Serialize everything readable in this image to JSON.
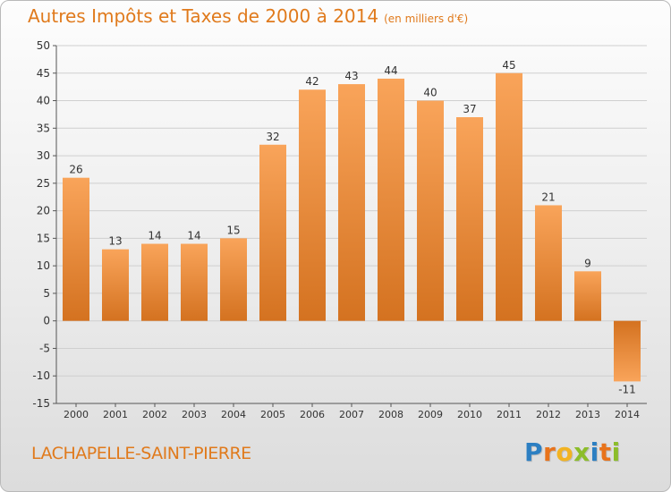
{
  "title": "Autres Impôts et Taxes de 2000 à 2014",
  "unit": "(en milliers d'€)",
  "commune": "LACHAPELLE-SAINT-PIERRE",
  "logo": {
    "letters": [
      "P",
      "r",
      "o",
      "x",
      "i",
      "t",
      "i"
    ],
    "colors": [
      "#2c7fc2",
      "#e8731b",
      "#f2b322",
      "#8cbd2a",
      "#2c7fc2",
      "#e8731b",
      "#8cbd2a"
    ]
  },
  "colors": {
    "bar_top": "#f9a45a",
    "bar_bottom": "#d47220",
    "title": "#e07a1c",
    "grid": "#cfcfcf",
    "axis": "#555555"
  },
  "chart_data": {
    "type": "bar",
    "title": "Autres Impôts et Taxes de 2000 à 2014",
    "categories": [
      "2000",
      "2001",
      "2002",
      "2003",
      "2004",
      "2005",
      "2006",
      "2007",
      "2008",
      "2009",
      "2010",
      "2011",
      "2012",
      "2013",
      "2014"
    ],
    "values": [
      26,
      13,
      14,
      14,
      15,
      32,
      42,
      43,
      44,
      40,
      37,
      45,
      21,
      9,
      -11
    ],
    "data_labels": [
      "26",
      "13",
      "14",
      "14",
      "15",
      "32",
      "42",
      "43",
      "44",
      "40",
      "37",
      "45",
      "21",
      "9",
      "-11"
    ],
    "yticks": [
      50,
      45,
      40,
      35,
      30,
      25,
      20,
      15,
      10,
      5,
      0,
      -5,
      -10,
      -15
    ],
    "ylim": [
      -15,
      50
    ],
    "grid": true,
    "xlabel": "",
    "ylabel": ""
  }
}
